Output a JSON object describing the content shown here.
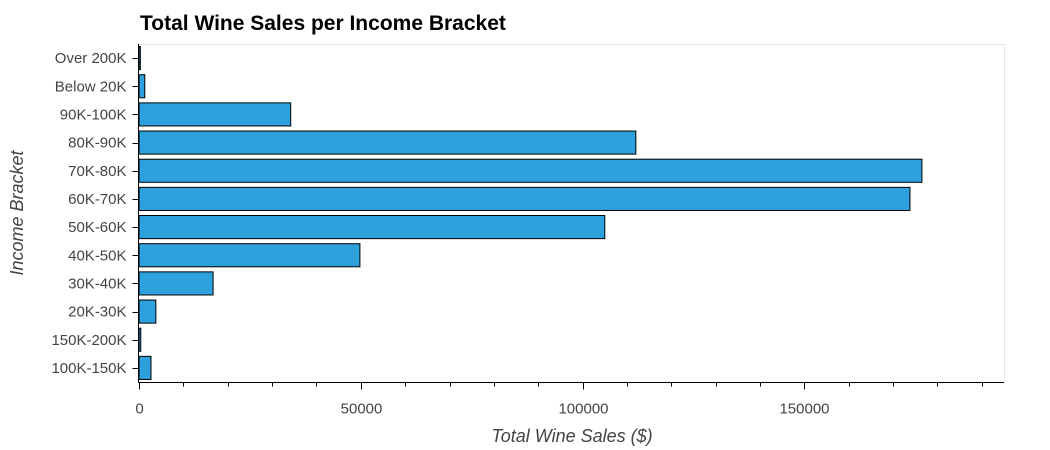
{
  "chart_data": {
    "type": "bar",
    "orientation": "horizontal",
    "title": "Total Wine Sales per Income Bracket",
    "xlabel": "Total Wine Sales ($)",
    "ylabel": "Income Bracket",
    "xlim": [
      0,
      195000
    ],
    "x_ticks": [
      0,
      50000,
      100000,
      150000
    ],
    "x_tick_labels": [
      "0",
      "50000",
      "100000",
      "150000"
    ],
    "x_minor_step": 10000,
    "bar_color": "#2ca1db",
    "bar_outline_color": "#000000",
    "grid": false,
    "categories": [
      "Over 200K",
      "Below 20K",
      "90K-100K",
      "80K-90K",
      "70K-80K",
      "60K-70K",
      "50K-60K",
      "40K-50K",
      "30K-40K",
      "20K-30K",
      "150K-200K",
      "100K-150K"
    ],
    "values": [
      300,
      1300,
      34200,
      112000,
      176500,
      173800,
      105000,
      49800,
      16700,
      3800,
      400,
      2700
    ]
  }
}
